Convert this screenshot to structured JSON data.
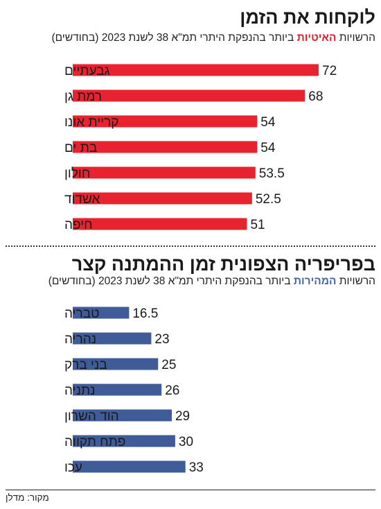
{
  "charts": [
    {
      "title": "לוקחות את הזמן",
      "subtitle_before": "הרשויות ",
      "subtitle_highlight": "האיטיות",
      "subtitle_after": " ביותר בהנפקת היתרי תמ\"א 38 לשנת 2023 (בחודשים)",
      "color": "#e8232f",
      "highlight_color": "#e0202e"
    },
    {
      "title": "בפריפריה הצפונית זמן ההמתנה קצר",
      "subtitle_before": "הרשויות ",
      "subtitle_highlight": "המהירות",
      "subtitle_after": " ביותר בהנפקת היתרי תמ\"א 38 לשנת 2023 (בחודשים)",
      "color": "#3f5c99",
      "highlight_color": "#4767a8"
    }
  ],
  "source": "מקור: מדלן",
  "chart_data": [
    {
      "type": "bar",
      "orientation": "horizontal",
      "title": "לוקחות את הזמן",
      "unit": "חודשים",
      "categories": [
        "גבעתיים",
        "רמת גן",
        "קריית אונו",
        "בת ים",
        "חולון",
        "אשדוד",
        "חיפה"
      ],
      "values": [
        72,
        68,
        54,
        54,
        53.5,
        52.5,
        51
      ],
      "value_labels": [
        "72",
        "68",
        "54",
        "54",
        "53.5",
        "52.5",
        "51"
      ],
      "xlim": [
        0,
        72
      ],
      "grid": false,
      "legend": "none",
      "color": "#e8232f"
    },
    {
      "type": "bar",
      "orientation": "horizontal",
      "title": "בפריפריה הצפונית זמן ההמתנה קצר",
      "unit": "חודשים",
      "categories": [
        "טבריה",
        "נהריה",
        "בני ברק",
        "נתניה",
        "הוד השרון",
        "פתח תקווה",
        "עכו"
      ],
      "values": [
        16.5,
        23,
        25,
        26,
        29,
        30,
        33
      ],
      "value_labels": [
        "16.5",
        "23",
        "25",
        "26",
        "29",
        "30",
        "33"
      ],
      "xlim": [
        0,
        72
      ],
      "grid": false,
      "legend": "none",
      "color": "#3f5c99"
    }
  ]
}
